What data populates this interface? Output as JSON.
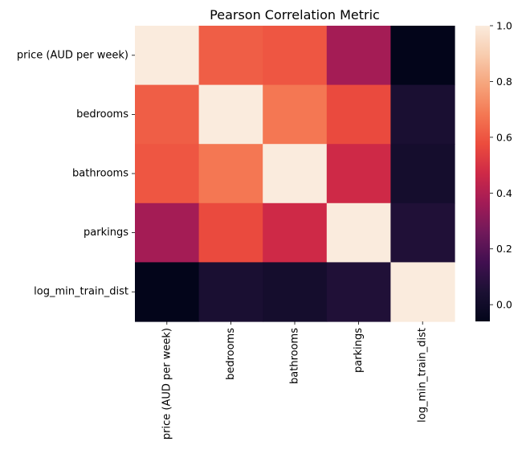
{
  "chart_data": {
    "type": "heatmap",
    "title": "Pearson Correlation Metric",
    "xlabel": "",
    "ylabel": "",
    "row_labels": [
      "price (AUD per week)",
      "bedrooms",
      "bathrooms",
      "parkings",
      "log_min_train_dist"
    ],
    "col_labels": [
      "price (AUD per week)",
      "bedrooms",
      "bathrooms",
      "parkings",
      "log_min_train_dist"
    ],
    "values": [
      [
        1.0,
        0.62,
        0.6,
        0.37,
        -0.06
      ],
      [
        0.62,
        1.0,
        0.68,
        0.57,
        0.04
      ],
      [
        0.6,
        0.68,
        1.0,
        0.47,
        0.02
      ],
      [
        0.37,
        0.57,
        0.47,
        1.0,
        0.06
      ],
      [
        -0.06,
        0.04,
        0.02,
        0.06,
        1.0
      ]
    ],
    "colorbar": {
      "min": -0.06,
      "max": 1.0,
      "ticks": [
        0.0,
        0.2,
        0.4,
        0.6,
        0.8,
        1.0
      ],
      "tick_labels": [
        "0.0",
        "0.2",
        "0.4",
        "0.6",
        "0.8",
        "1.0"
      ],
      "colormap": "rocket"
    },
    "grid": false,
    "legend": "colorbar-right"
  }
}
